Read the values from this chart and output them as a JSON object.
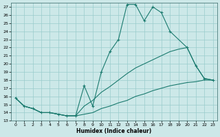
{
  "xlabel": "Humidex (Indice chaleur)",
  "bg_color": "#cce8e8",
  "grid_color": "#99cccc",
  "line_color": "#1a7a6e",
  "peak_x": [
    0,
    1,
    2,
    3,
    4,
    5,
    6,
    7,
    8,
    9,
    10,
    11,
    12,
    13,
    14,
    15,
    16,
    17,
    18,
    20,
    21,
    22,
    23
  ],
  "peak_y": [
    15.8,
    14.8,
    14.5,
    14.0,
    14.0,
    13.8,
    13.6,
    13.6,
    17.3,
    14.8,
    19.0,
    21.5,
    23.0,
    27.3,
    27.3,
    25.3,
    27.0,
    26.3,
    24.0,
    22.0,
    19.8,
    18.2,
    18.0
  ],
  "mid_x": [
    0,
    1,
    2,
    3,
    4,
    5,
    6,
    7,
    8,
    9,
    10,
    11,
    12,
    13,
    14,
    15,
    16,
    17,
    18,
    19,
    20,
    21,
    22,
    23
  ],
  "mid_y": [
    15.8,
    14.8,
    14.5,
    14.0,
    14.0,
    13.8,
    13.6,
    13.6,
    14.8,
    15.5,
    16.5,
    17.2,
    18.0,
    18.8,
    19.5,
    20.0,
    20.5,
    21.0,
    21.5,
    21.8,
    22.0,
    19.8,
    18.2,
    18.0
  ],
  "low_x": [
    0,
    1,
    2,
    3,
    4,
    5,
    6,
    7,
    8,
    9,
    10,
    11,
    12,
    13,
    14,
    15,
    16,
    17,
    18,
    19,
    20,
    21,
    22,
    23
  ],
  "low_y": [
    15.8,
    14.8,
    14.5,
    14.0,
    14.0,
    13.8,
    13.6,
    13.6,
    13.8,
    14.0,
    14.5,
    14.8,
    15.2,
    15.5,
    16.0,
    16.3,
    16.7,
    17.0,
    17.3,
    17.5,
    17.7,
    17.8,
    18.0,
    18.0
  ],
  "xlim": [
    -0.5,
    23.5
  ],
  "ylim": [
    13.0,
    27.5
  ],
  "yticks": [
    13,
    14,
    15,
    16,
    17,
    18,
    19,
    20,
    21,
    22,
    23,
    24,
    25,
    26,
    27
  ],
  "xticks": [
    0,
    1,
    2,
    3,
    4,
    5,
    6,
    7,
    8,
    9,
    10,
    11,
    12,
    13,
    14,
    15,
    16,
    17,
    18,
    19,
    20,
    21,
    22,
    23
  ]
}
